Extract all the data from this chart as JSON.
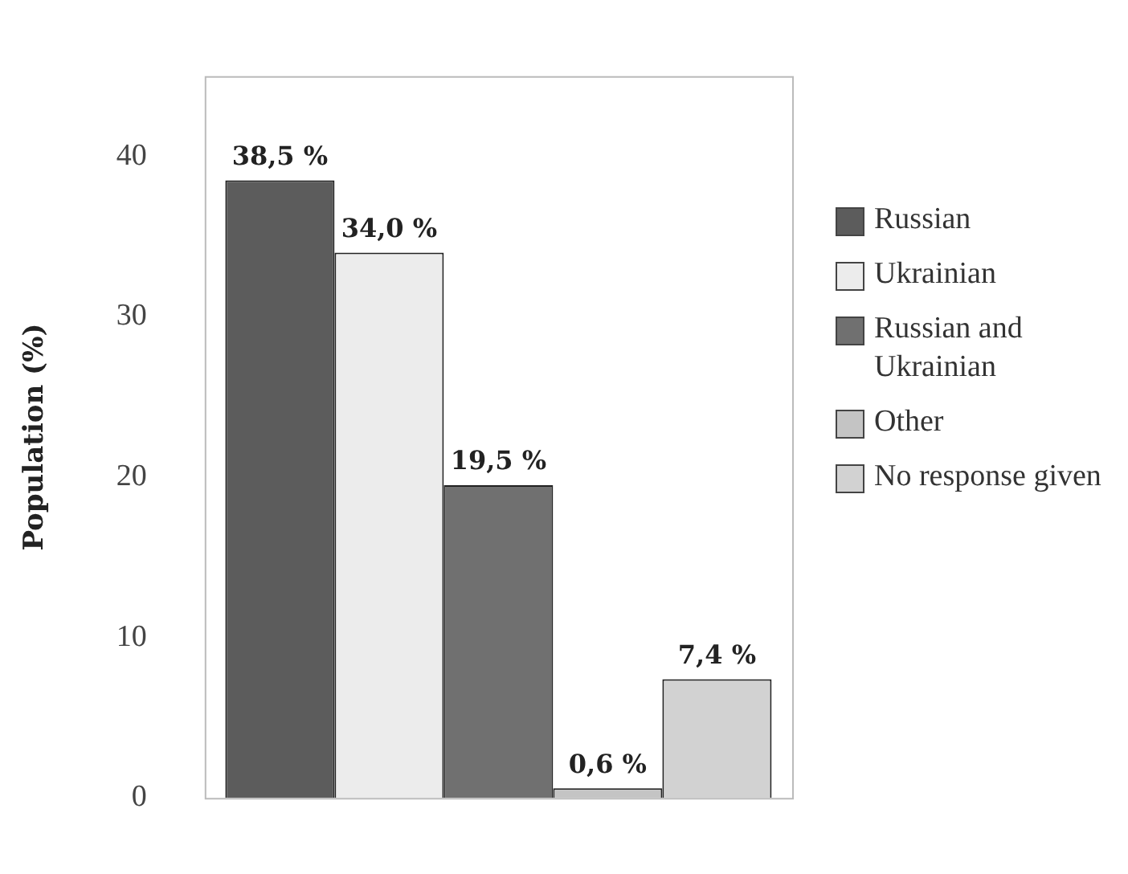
{
  "chart_data": {
    "type": "bar",
    "ylabel": "Population (%)",
    "categories": [
      null
    ],
    "series": [
      {
        "name": "Russian",
        "color": "#5c5c5c",
        "values": [
          38.5
        ],
        "value_labels": [
          "38,5 %"
        ]
      },
      {
        "name": "Ukrainian",
        "color": "#ececec",
        "values": [
          34.0
        ],
        "value_labels": [
          "34,0 %"
        ]
      },
      {
        "name": "Russian and Ukrainian",
        "color": "#707070",
        "values": [
          19.5
        ],
        "value_labels": [
          "19,5 %"
        ]
      },
      {
        "name": "Other",
        "color": "#c4c4c4",
        "values": [
          0.6
        ],
        "value_labels": [
          "0,6 %"
        ]
      },
      {
        "name": "No response given",
        "color": "#d2d2d2",
        "values": [
          7.4
        ],
        "value_labels": [
          "7,4 %"
        ]
      }
    ],
    "ylim": [
      0,
      45
    ],
    "yticks": [
      0,
      10,
      20,
      30,
      40
    ],
    "grid": false,
    "legend": "right"
  }
}
